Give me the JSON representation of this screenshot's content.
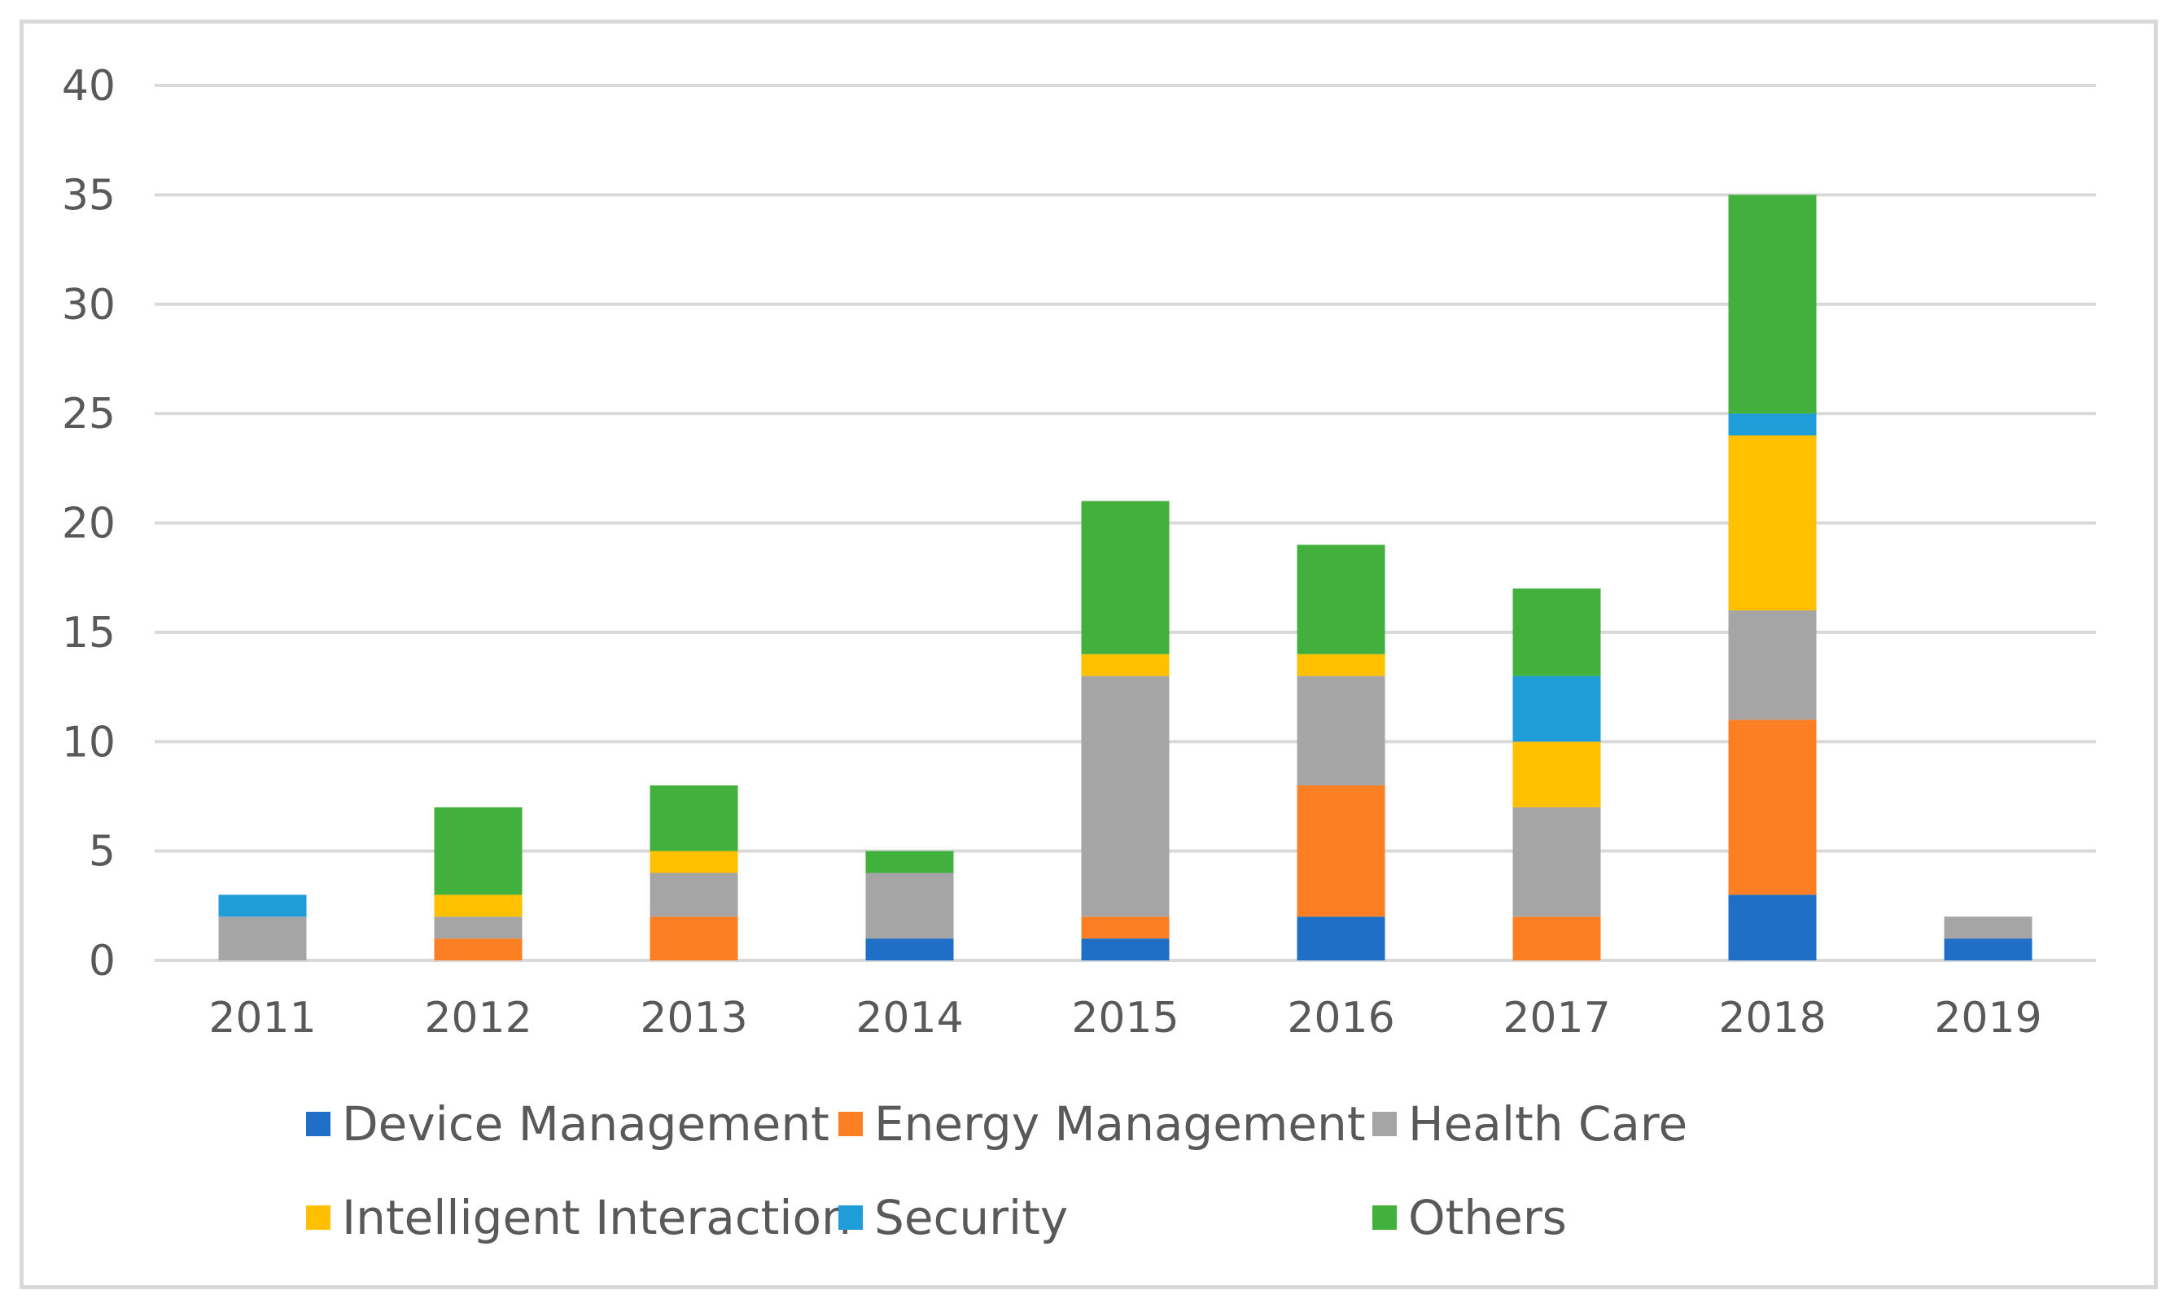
{
  "chart_data": {
    "type": "bar",
    "stacked": true,
    "title": "",
    "xlabel": "",
    "ylabel": "",
    "ylim": [
      0,
      40
    ],
    "yticks": [
      0,
      5,
      10,
      15,
      20,
      25,
      30,
      35,
      40
    ],
    "grid": true,
    "legend_position": "bottom",
    "categories": [
      "2011",
      "2012",
      "2013",
      "2014",
      "2015",
      "2016",
      "2017",
      "2018",
      "2019"
    ],
    "series": [
      {
        "name": "Device Management",
        "color": "#1f6fc6",
        "values": [
          0,
          0,
          0,
          1,
          1,
          2,
          0,
          3,
          1
        ]
      },
      {
        "name": "Energy Management",
        "color": "#fd7f24",
        "values": [
          0,
          1,
          2,
          0,
          1,
          6,
          2,
          8,
          0
        ]
      },
      {
        "name": "Health Care",
        "color": "#a5a5a5",
        "values": [
          2,
          1,
          2,
          3,
          11,
          5,
          5,
          5,
          1
        ]
      },
      {
        "name": "Intelligent Interaction",
        "color": "#ffc000",
        "values": [
          0,
          1,
          1,
          0,
          1,
          1,
          3,
          8,
          0
        ]
      },
      {
        "name": "Security",
        "color": "#1f9dd9",
        "values": [
          1,
          0,
          0,
          0,
          0,
          0,
          3,
          1,
          0
        ]
      },
      {
        "name": "Others",
        "color": "#41b03d",
        "values": [
          0,
          4,
          3,
          1,
          7,
          5,
          4,
          10,
          0
        ]
      }
    ]
  }
}
